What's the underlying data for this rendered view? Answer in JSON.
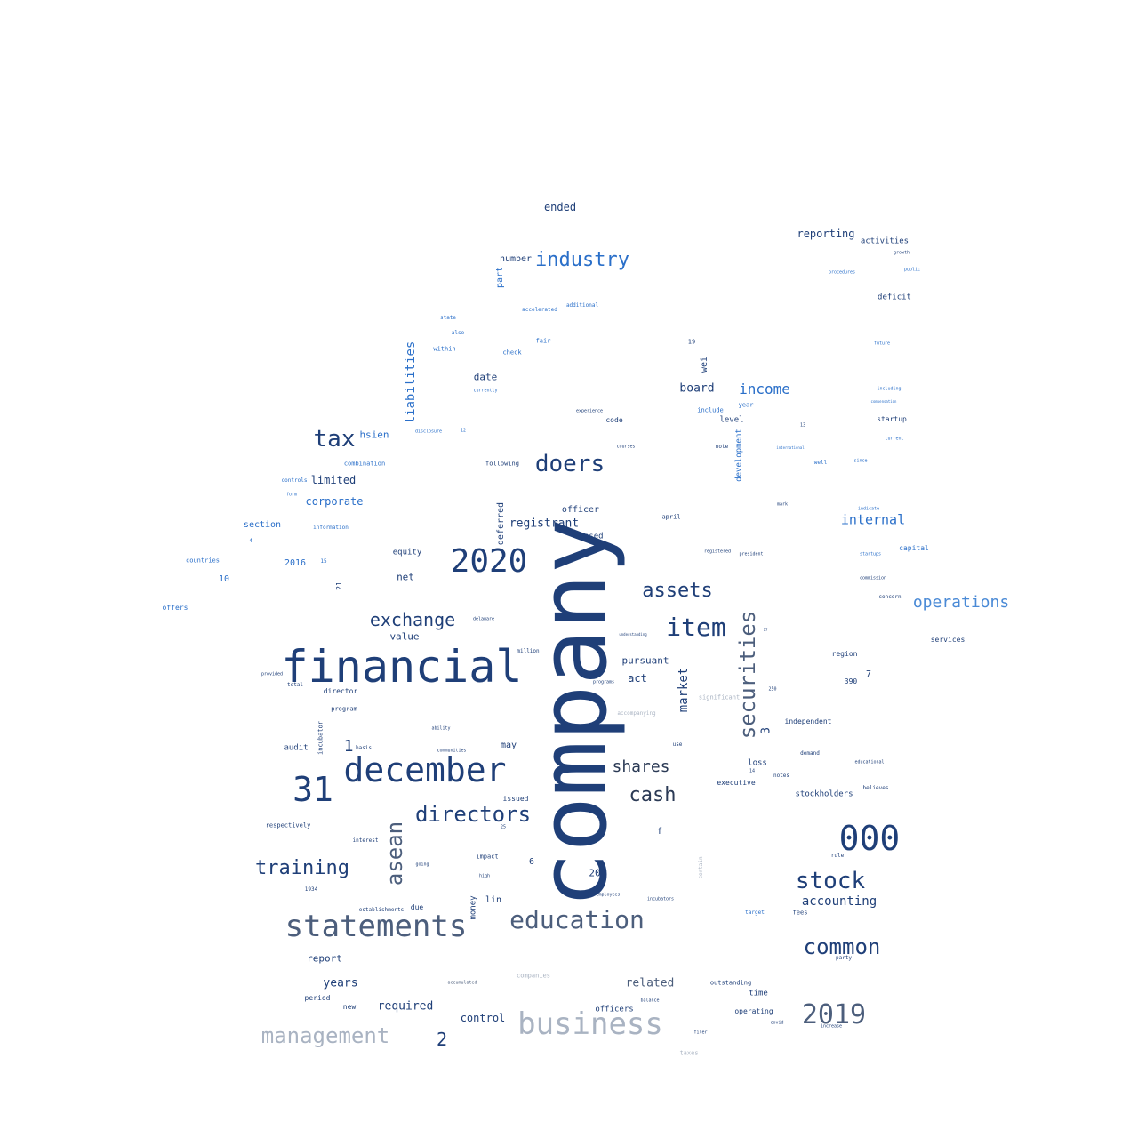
{
  "word_cloud": {
    "words": [
      {
        "text": "company"
      },
      {
        "text": "financial"
      },
      {
        "text": "december"
      },
      {
        "text": "statements"
      },
      {
        "text": "2020"
      },
      {
        "text": "31"
      },
      {
        "text": "000"
      },
      {
        "text": "education"
      },
      {
        "text": "business"
      },
      {
        "text": "2019"
      },
      {
        "text": "doers"
      },
      {
        "text": "tax"
      },
      {
        "text": "directors"
      },
      {
        "text": "securities"
      },
      {
        "text": "stock"
      },
      {
        "text": "common"
      },
      {
        "text": "management"
      },
      {
        "text": "training"
      },
      {
        "text": "asean"
      },
      {
        "text": "item"
      },
      {
        "text": "industry"
      },
      {
        "text": "assets"
      },
      {
        "text": "exchange"
      },
      {
        "text": "cash"
      },
      {
        "text": "shares"
      },
      {
        "text": "operations"
      },
      {
        "text": "income"
      },
      {
        "text": "internal"
      },
      {
        "text": "liabilities"
      },
      {
        "text": "accounting"
      },
      {
        "text": "registrant"
      },
      {
        "text": "market"
      },
      {
        "text": "related"
      },
      {
        "text": "required"
      },
      {
        "text": "control"
      },
      {
        "text": "years"
      },
      {
        "text": "2"
      },
      {
        "text": "1"
      },
      {
        "text": "3"
      },
      {
        "text": "board"
      },
      {
        "text": "corporate"
      },
      {
        "text": "limited"
      },
      {
        "text": "hsien"
      },
      {
        "text": "net"
      },
      {
        "text": "value"
      },
      {
        "text": "act"
      },
      {
        "text": "pursuant"
      },
      {
        "text": "report"
      },
      {
        "text": "date"
      },
      {
        "text": "reporting"
      },
      {
        "text": "ended"
      },
      {
        "text": "number"
      },
      {
        "text": "part"
      },
      {
        "text": "officer"
      },
      {
        "text": "deferred"
      },
      {
        "text": "equity"
      },
      {
        "text": "based"
      },
      {
        "text": "development"
      },
      {
        "text": "wei"
      },
      {
        "text": "level"
      },
      {
        "text": "activities"
      },
      {
        "text": "deficit"
      },
      {
        "text": "section"
      },
      {
        "text": "2016"
      },
      {
        "text": "10"
      },
      {
        "text": "audit"
      },
      {
        "text": "loss"
      },
      {
        "text": "executive"
      },
      {
        "text": "stockholders"
      },
      {
        "text": "independent"
      },
      {
        "text": "officers"
      },
      {
        "text": "20"
      },
      {
        "text": "6"
      },
      {
        "text": "f"
      },
      {
        "text": "may"
      },
      {
        "text": "issued"
      },
      {
        "text": "lin"
      },
      {
        "text": "money"
      },
      {
        "text": "time"
      },
      {
        "text": "operating"
      },
      {
        "text": "outstanding"
      },
      {
        "text": "period"
      },
      {
        "text": "new"
      },
      {
        "text": "due"
      },
      {
        "text": "7"
      },
      {
        "text": "390"
      },
      {
        "text": "region"
      },
      {
        "text": "fees"
      },
      {
        "text": "target"
      },
      {
        "text": "notes"
      },
      {
        "text": "startup"
      },
      {
        "text": "capital"
      },
      {
        "text": "services"
      },
      {
        "text": "offers"
      },
      {
        "text": "countries"
      },
      {
        "text": "21"
      },
      {
        "text": "impact"
      },
      {
        "text": "code"
      },
      {
        "text": "following"
      },
      {
        "text": "april"
      },
      {
        "text": "check"
      },
      {
        "text": "include"
      },
      {
        "text": "year"
      },
      {
        "text": "note"
      },
      {
        "text": "19"
      },
      {
        "text": "fair"
      },
      {
        "text": "within"
      },
      {
        "text": "also"
      },
      {
        "text": "state"
      },
      {
        "text": "additional"
      },
      {
        "text": "accelerated"
      },
      {
        "text": "combination"
      },
      {
        "text": "information"
      },
      {
        "text": "4"
      },
      {
        "text": "15"
      },
      {
        "text": "controls"
      },
      {
        "text": "form"
      },
      {
        "text": "director"
      },
      {
        "text": "program"
      },
      {
        "text": "incubator"
      },
      {
        "text": "total"
      },
      {
        "text": "provided"
      },
      {
        "text": "respectively"
      },
      {
        "text": "interest"
      },
      {
        "text": "going"
      },
      {
        "text": "high"
      },
      {
        "text": "1934"
      },
      {
        "text": "establishments"
      },
      {
        "text": "accumulated"
      },
      {
        "text": "companies"
      },
      {
        "text": "taxes"
      },
      {
        "text": "balance"
      },
      {
        "text": "filer"
      },
      {
        "text": "covid"
      },
      {
        "text": "increase"
      },
      {
        "text": "party"
      },
      {
        "text": "rule"
      },
      {
        "text": "believes"
      },
      {
        "text": "educational"
      },
      {
        "text": "demand"
      },
      {
        "text": "concern"
      },
      {
        "text": "commission"
      },
      {
        "text": "startups"
      },
      {
        "text": "indicate"
      },
      {
        "text": "mark"
      },
      {
        "text": "well"
      },
      {
        "text": "since"
      },
      {
        "text": "current"
      },
      {
        "text": "including"
      },
      {
        "text": "compensation"
      },
      {
        "text": "future"
      },
      {
        "text": "public"
      },
      {
        "text": "growth"
      },
      {
        "text": "procedures"
      },
      {
        "text": "million"
      },
      {
        "text": "incubators"
      },
      {
        "text": "employees"
      },
      {
        "text": "significant"
      },
      {
        "text": "accompanying"
      },
      {
        "text": "programs"
      },
      {
        "text": "courses"
      },
      {
        "text": "experience"
      },
      {
        "text": "disclosure"
      },
      {
        "text": "12"
      },
      {
        "text": "currently"
      },
      {
        "text": "ability"
      },
      {
        "text": "basis"
      },
      {
        "text": "communities"
      },
      {
        "text": "delaware"
      },
      {
        "text": "registered"
      },
      {
        "text": "president"
      },
      {
        "text": "certain"
      },
      {
        "text": "use"
      },
      {
        "text": "understanding"
      },
      {
        "text": "international"
      },
      {
        "text": "13"
      },
      {
        "text": "25"
      },
      {
        "text": "14"
      },
      {
        "text": "250"
      },
      {
        "text": "17"
      }
    ]
  }
}
